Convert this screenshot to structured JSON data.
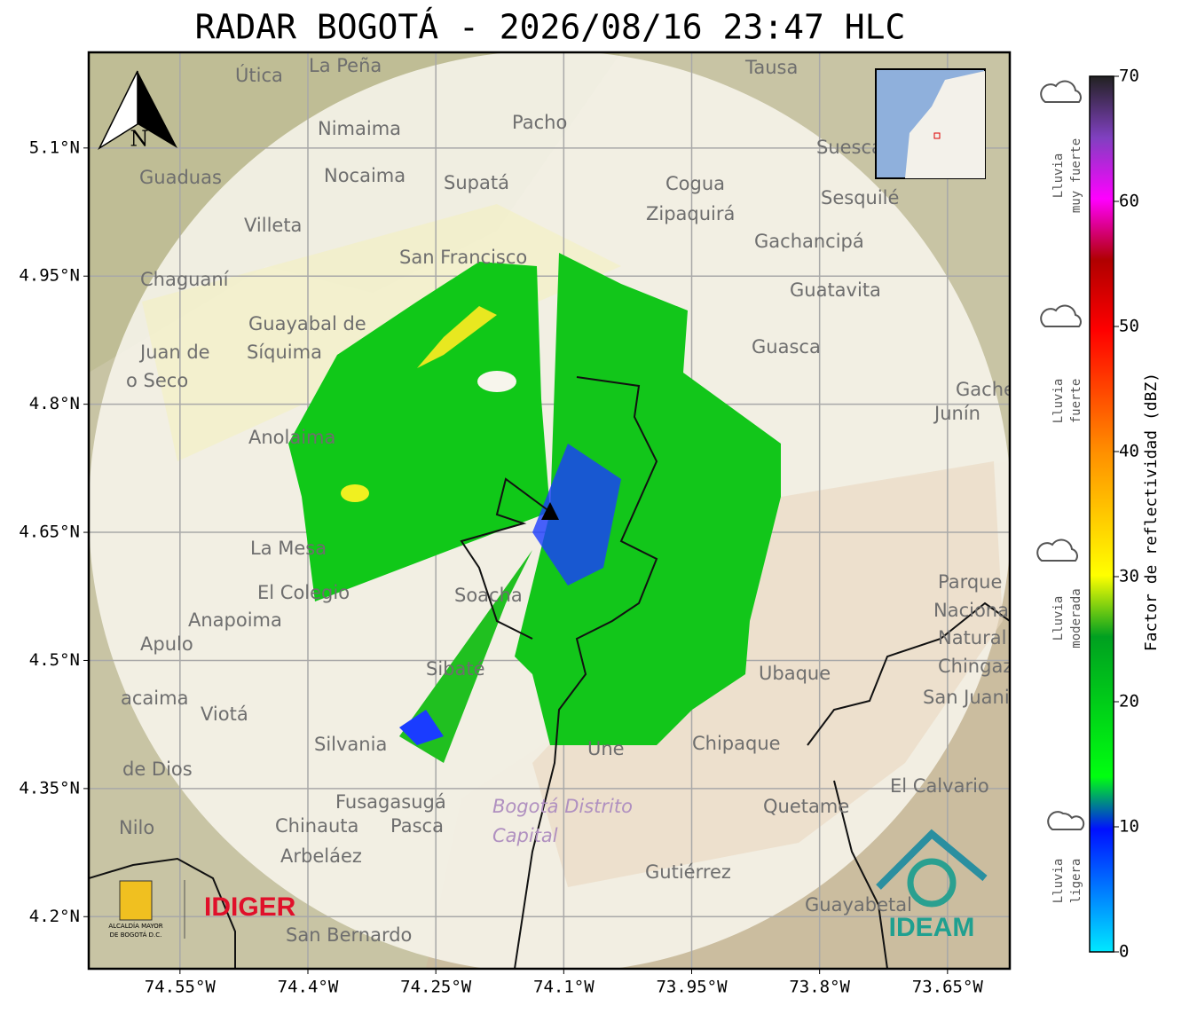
{
  "title": "RADAR BOGOTÁ - 2026/08/16 23:47 HLC",
  "map": {
    "lon_range": [
      -74.657,
      -73.577
    ],
    "lat_range": [
      4.139,
      5.212
    ],
    "lon_ticks": [
      {
        "value": -74.55,
        "label": "74.55°W"
      },
      {
        "value": -74.4,
        "label": "74.4°W"
      },
      {
        "value": -74.25,
        "label": "74.25°W"
      },
      {
        "value": -74.1,
        "label": "74.1°W"
      },
      {
        "value": -73.95,
        "label": "73.95°W"
      },
      {
        "value": -73.8,
        "label": "73.8°W"
      },
      {
        "value": -73.65,
        "label": "73.65°W"
      }
    ],
    "lat_ticks": [
      {
        "value": 5.1,
        "label": "5.1°N"
      },
      {
        "value": 4.95,
        "label": "4.95°N"
      },
      {
        "value": 4.8,
        "label": "4.8°N"
      },
      {
        "value": 4.65,
        "label": "4.65°N"
      },
      {
        "value": 4.5,
        "label": "4.5°N"
      },
      {
        "value": 4.35,
        "label": "4.35°N"
      },
      {
        "value": 4.2,
        "label": "4.2°N"
      }
    ],
    "north": "N",
    "places": [
      "Útica",
      "La Peña",
      "Tausa",
      "Pacho",
      "Nimaima",
      "Guaduas",
      "Nocaima",
      "Supatá",
      "Cogua",
      "Suesca",
      "Zipaquirá",
      "Sesquilé",
      "Villeta",
      "Gachancipá",
      "San Francisco",
      "Chaguaní",
      "Guatavita",
      "Guayabal de",
      "Síquima",
      "Guasca",
      "Juan de",
      "o Seco",
      "Gachetá",
      "Junín",
      "Anolaima",
      "La Mesa",
      "El Colegio",
      "Soacha",
      "Anapoima",
      "Apulo",
      "Parque",
      "Nacional",
      "Natural",
      "Chingaza",
      "Sibaté",
      "Ubaque",
      "San Juanito",
      "Viotá",
      "Silvania",
      "Chipaque",
      "Une",
      "El Calvario",
      "Fusagasugá",
      "Bogotá Distrito",
      "Capital",
      "Quetame",
      "Chinauta",
      "Pasca",
      "Nilo",
      "Arbeláez",
      "Gutiérrez",
      "Guayabetal",
      "San Bernardo",
      "de Dios",
      "acaima"
    ]
  },
  "colorbar": {
    "label": "Factor de reflectividad (dBZ)",
    "range": [
      0,
      70
    ],
    "ticks": [
      0,
      10,
      20,
      30,
      40,
      50,
      60,
      70
    ],
    "intensity": [
      [
        "Lluvia",
        "muy fuerte"
      ],
      [
        "Lluvia",
        "fuerte"
      ],
      [
        "Lluvia",
        "moderada"
      ],
      [
        "Lluvia",
        "ligera"
      ]
    ]
  },
  "logos": {
    "alcaldia": [
      "ALCALDÍA MAYOR",
      "DE BOGOTÁ D.C."
    ],
    "idiger": "IDIGER",
    "ideam": "IDEAM"
  }
}
